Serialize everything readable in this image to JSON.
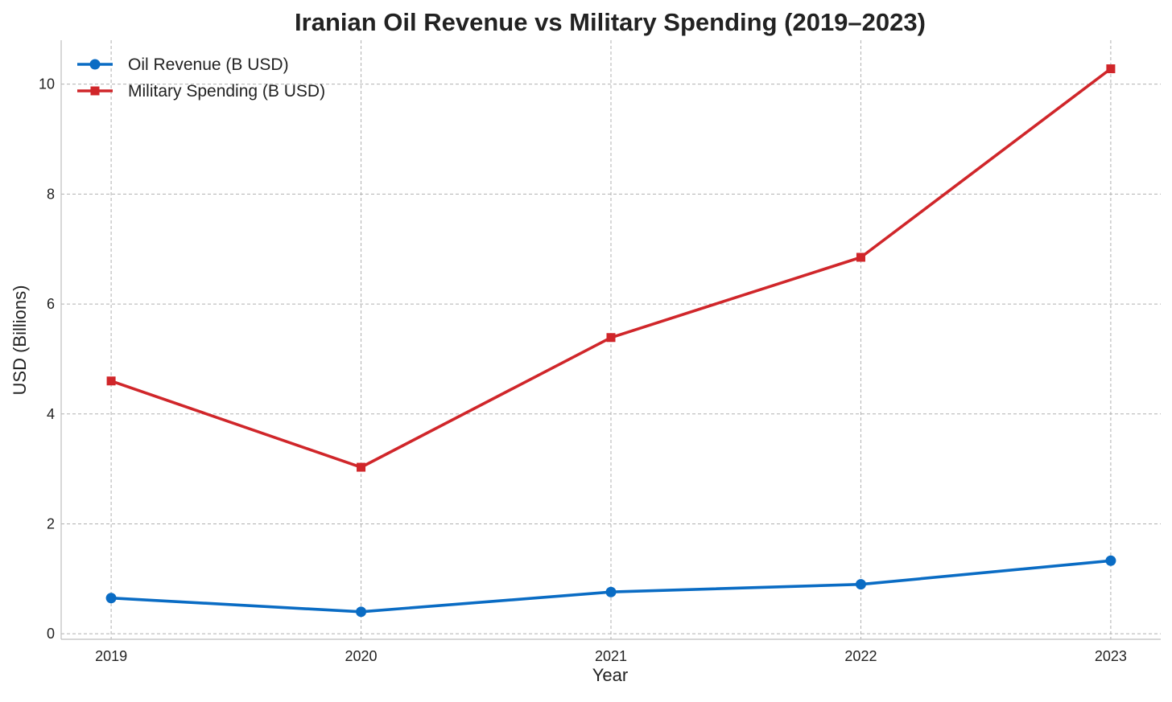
{
  "chart_data": {
    "type": "line",
    "title": "Iranian Oil Revenue vs Military Spending (2019–2023)",
    "xlabel": "Year",
    "ylabel": "USD (Billions)",
    "x": [
      2019,
      2020,
      2021,
      2022,
      2023
    ],
    "x_tick_labels": [
      "2019",
      "2020",
      "2021",
      "2022",
      "2023"
    ],
    "y_ticks": [
      0,
      2,
      4,
      6,
      8,
      10
    ],
    "y_tick_labels": [
      "0",
      "2",
      "4",
      "6",
      "8",
      "10"
    ],
    "xlim": [
      2018.8,
      2023.2
    ],
    "ylim": [
      -0.1,
      10.8
    ],
    "grid": true,
    "legend_position": "top-left",
    "series": [
      {
        "name": "Oil Revenue (B USD)",
        "values": [
          0.65,
          0.4,
          0.76,
          0.9,
          1.33
        ],
        "color": "#0a6cc4",
        "marker": "circle"
      },
      {
        "name": "Military Spending (B USD)",
        "values": [
          4.6,
          3.03,
          5.39,
          6.85,
          10.28
        ],
        "color": "#d0262a",
        "marker": "square"
      }
    ]
  }
}
